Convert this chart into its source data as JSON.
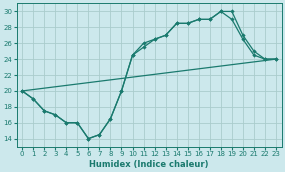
{
  "xlabel": "Humidex (Indice chaleur)",
  "ylabel": "",
  "bg_color": "#cce8ec",
  "grid_color": "#aacccc",
  "line_color": "#1a7a6e",
  "xlim": [
    -0.5,
    23.5
  ],
  "ylim": [
    13.0,
    31.0
  ],
  "xticks": [
    0,
    1,
    2,
    3,
    4,
    5,
    6,
    7,
    8,
    9,
    10,
    11,
    12,
    13,
    14,
    15,
    16,
    17,
    18,
    19,
    20,
    21,
    22,
    23
  ],
  "yticks": [
    14,
    16,
    18,
    20,
    22,
    24,
    26,
    28,
    30
  ],
  "line1_x": [
    0,
    1,
    2,
    3,
    4,
    5,
    6,
    7,
    8,
    9,
    10,
    11,
    12,
    13,
    14,
    15,
    16,
    17,
    18,
    19,
    20,
    21,
    22,
    23
  ],
  "line1_y": [
    20,
    19,
    17.5,
    17,
    16,
    16,
    14,
    14.5,
    16.5,
    20,
    24.5,
    26,
    26.5,
    27,
    28.5,
    28.5,
    29,
    29,
    30,
    30,
    27,
    25,
    24,
    24
  ],
  "line2_x": [
    0,
    1,
    2,
    3,
    4,
    5,
    6,
    7,
    8,
    9,
    10,
    11,
    12,
    13,
    14,
    15,
    16,
    17,
    18,
    19,
    20,
    21,
    22,
    23
  ],
  "line2_y": [
    20,
    19,
    17.5,
    17,
    16,
    16,
    14,
    14.5,
    16.5,
    20,
    24.5,
    25.5,
    26.5,
    27,
    28.5,
    28.5,
    29,
    29,
    30,
    29,
    26.5,
    24.5,
    24,
    24
  ],
  "line3_x": [
    0,
    23
  ],
  "line3_y": [
    20,
    24
  ]
}
